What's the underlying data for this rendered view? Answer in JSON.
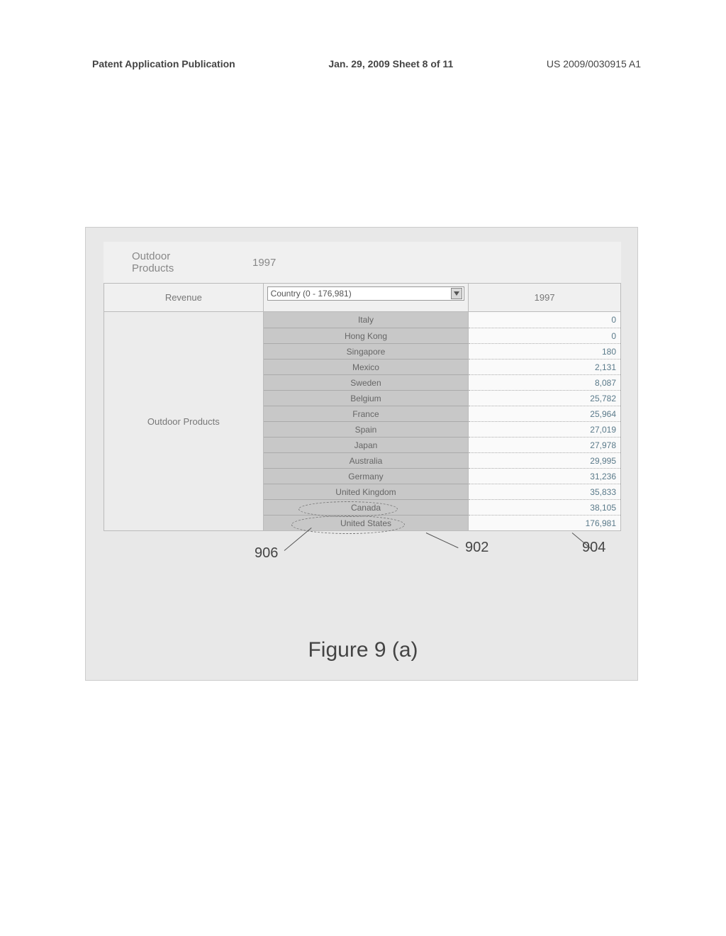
{
  "page_header": {
    "left": "Patent Application Publication",
    "center": "Jan. 29, 2009  Sheet 8 of 11",
    "right": "US 2009/0030915 A1"
  },
  "tabs": {
    "product_line1": "Outdoor",
    "product_line2": "Products",
    "year": "1997"
  },
  "table": {
    "revenue_label": "Revenue",
    "dropdown_label": "Country (0 - 176,981)",
    "year_col": "1997",
    "row_label": "Outdoor Products",
    "countries": [
      {
        "name": "Italy",
        "value": "0"
      },
      {
        "name": "Hong Kong",
        "value": "0"
      },
      {
        "name": "Singapore",
        "value": "180"
      },
      {
        "name": "Mexico",
        "value": "2,131"
      },
      {
        "name": "Sweden",
        "value": "8,087"
      },
      {
        "name": "Belgium",
        "value": "25,782"
      },
      {
        "name": "France",
        "value": "25,964"
      },
      {
        "name": "Spain",
        "value": "27,019"
      },
      {
        "name": "Japan",
        "value": "27,978"
      },
      {
        "name": "Australia",
        "value": "29,995"
      },
      {
        "name": "Germany",
        "value": "31,236"
      },
      {
        "name": "United Kingdom",
        "value": "35,833"
      },
      {
        "name": "Canada",
        "value": "38,105"
      },
      {
        "name": "United States",
        "value": "176,981"
      }
    ]
  },
  "callouts": {
    "c902": "902",
    "c904": "904",
    "c906": "906"
  },
  "figure_caption": "Figure 9 (a)",
  "style": {
    "bg": "#e8e8e8",
    "row_shade": "#c8c8c8",
    "value_color": "#5a7a8a"
  }
}
